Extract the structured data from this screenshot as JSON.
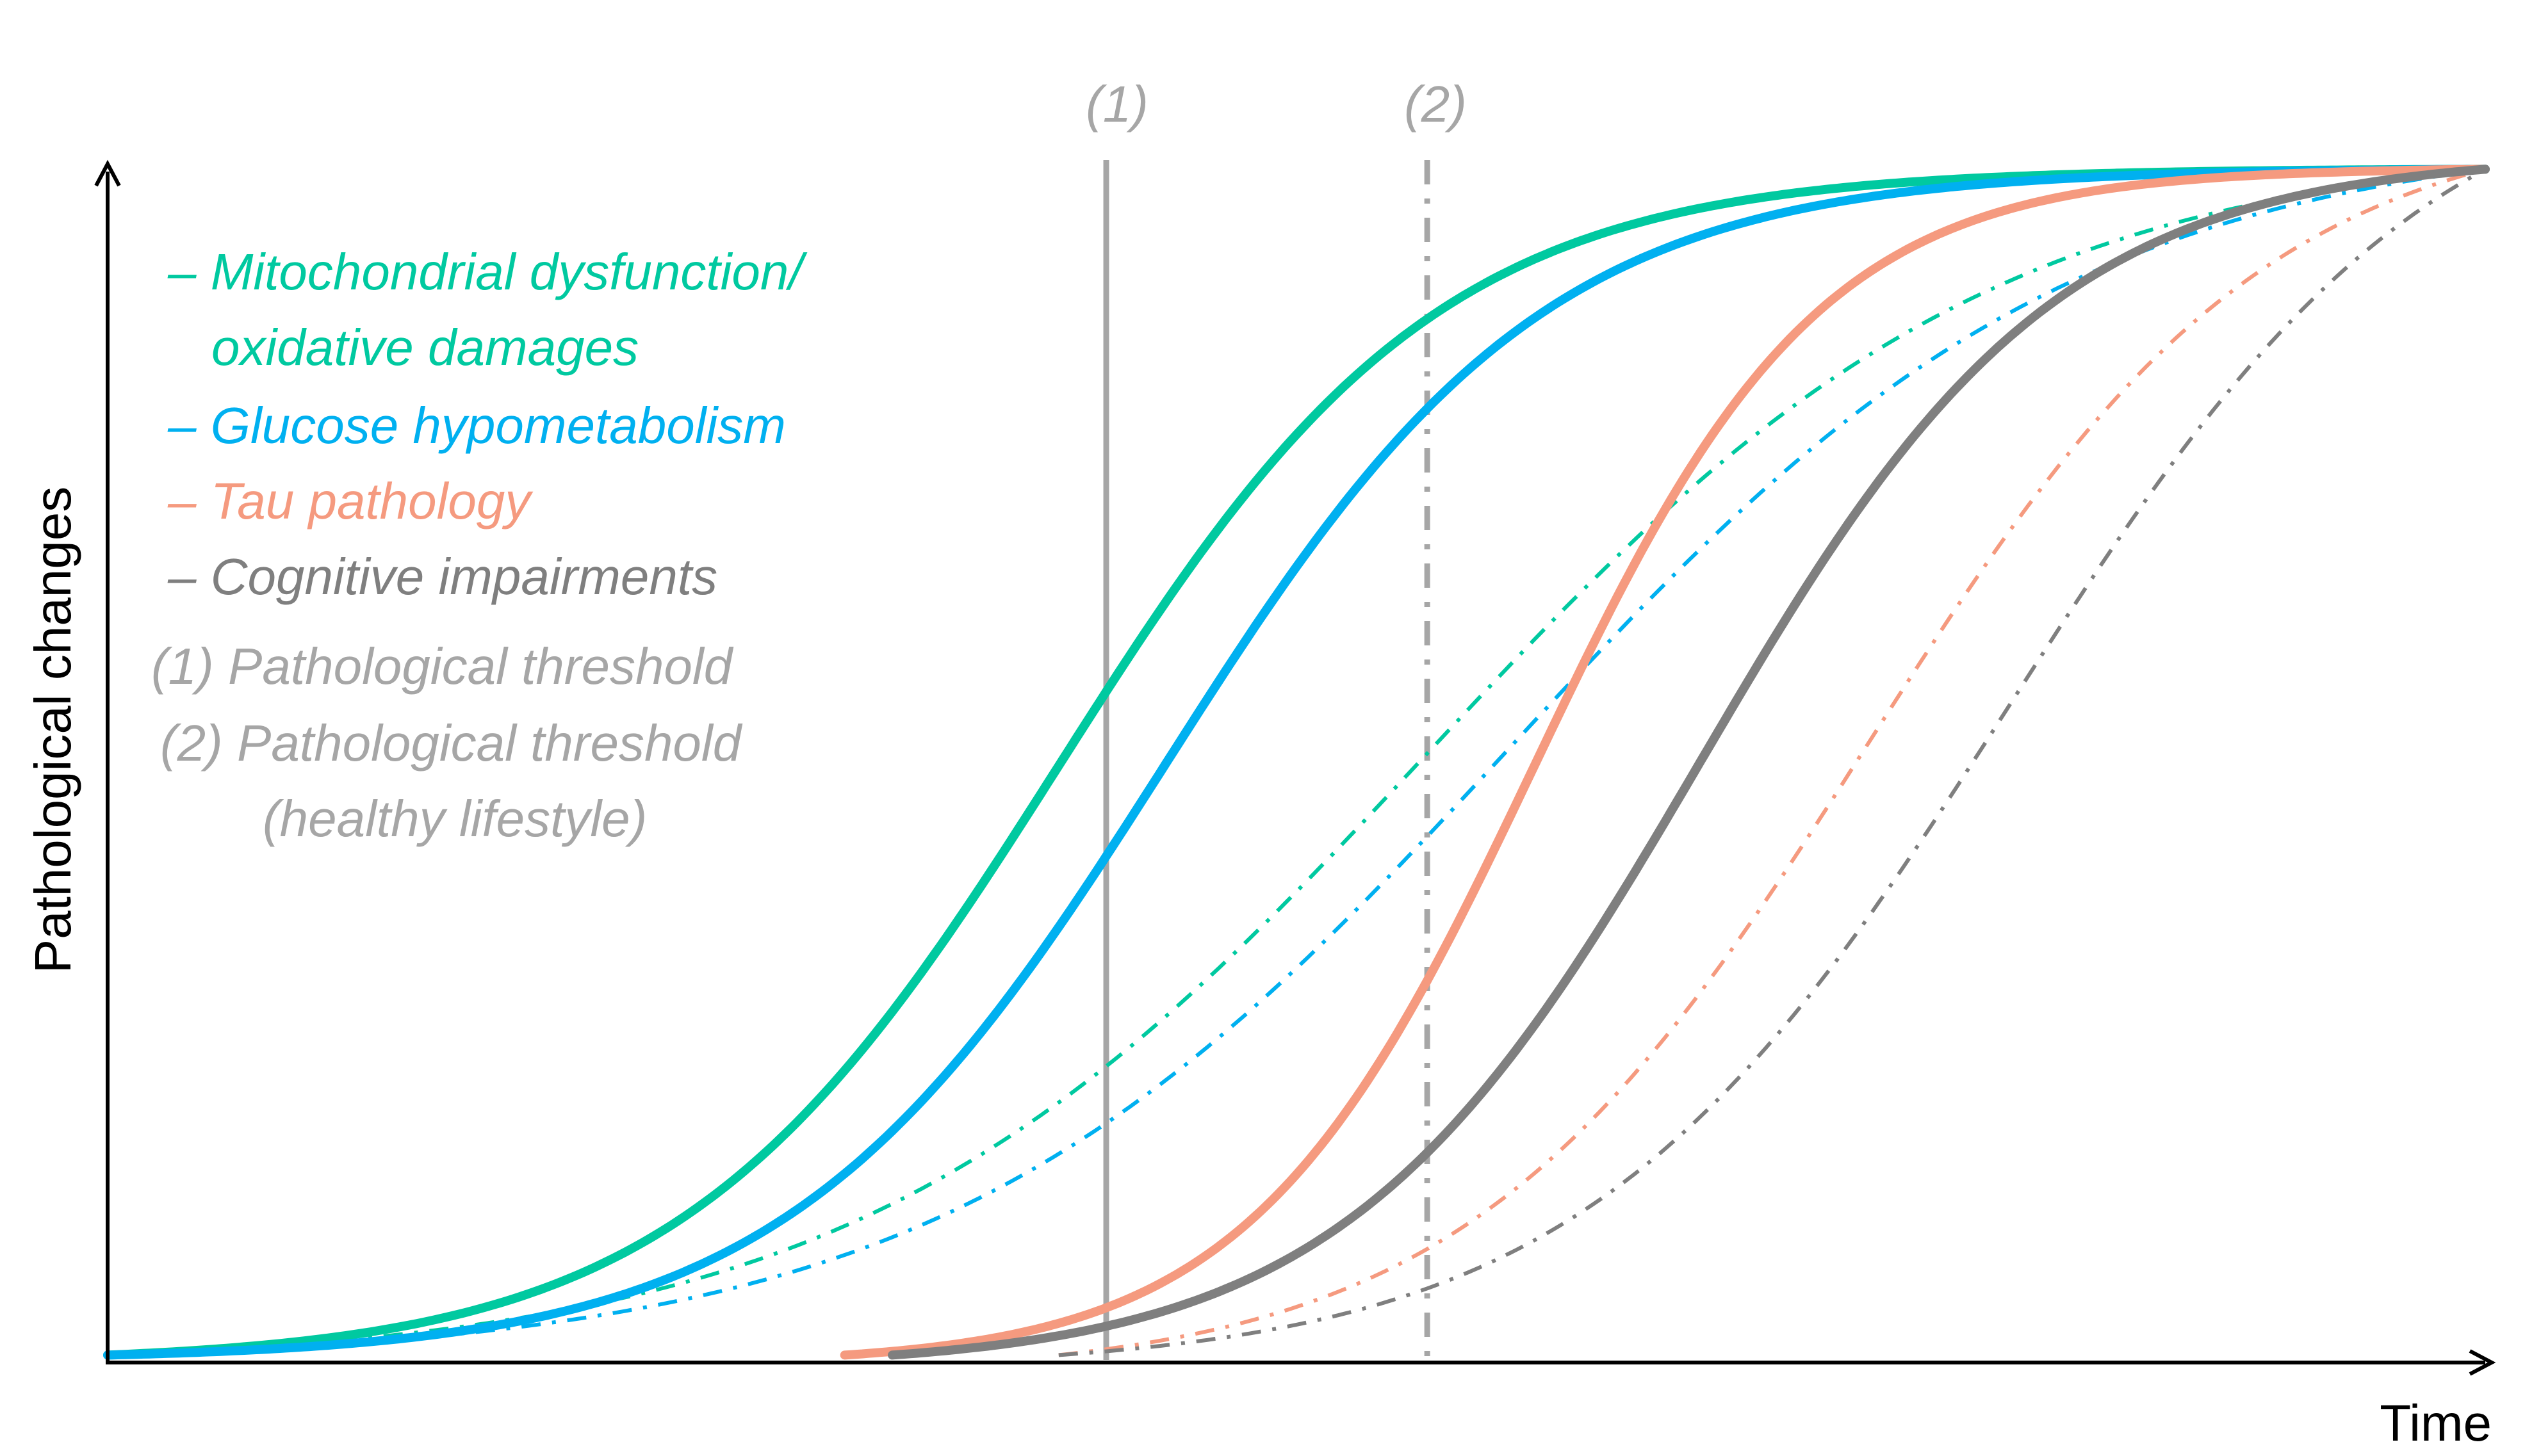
{
  "chart_data": {
    "type": "line",
    "title": "",
    "xlabel": "Time",
    "ylabel": "Pathological changes",
    "xlim": [
      0,
      100
    ],
    "ylim": [
      0,
      100
    ],
    "grid": false,
    "legend_position": "top-left",
    "series": [
      {
        "name": "Mitochondrial dysfunction/ oxidative damages",
        "variant": "pathological",
        "line_style": "solid",
        "color": "#00c9a0",
        "midpoint": 40,
        "spread": 8,
        "start_x": 0
      },
      {
        "name": "Glucose hypometabolism",
        "variant": "pathological",
        "line_style": "solid",
        "color": "#00b0f0",
        "midpoint": 44.5,
        "spread": 8,
        "start_x": 0
      },
      {
        "name": "Tau pathology",
        "variant": "pathological",
        "line_style": "solid",
        "color": "#f59a7f",
        "midpoint": 60,
        "spread": 6,
        "start_x": 31
      },
      {
        "name": "Cognitive impairments",
        "variant": "pathological",
        "line_style": "solid",
        "color": "#7f7f7f",
        "midpoint": 67,
        "spread": 7.5,
        "start_x": 33
      },
      {
        "name": "Mitochondrial dysfunction/ oxidative damages",
        "variant": "healthy lifestyle",
        "line_style": "dash-dot",
        "color": "#00c9a0",
        "midpoint": 55.5,
        "spread": 12,
        "start_x": 0
      },
      {
        "name": "Glucose hypometabolism",
        "variant": "healthy lifestyle",
        "line_style": "dash-dot",
        "color": "#00b0f0",
        "midpoint": 59,
        "spread": 12,
        "start_x": 0
      },
      {
        "name": "Tau pathology",
        "variant": "healthy lifestyle",
        "line_style": "dash-dot",
        "color": "#f59a7f",
        "midpoint": 74,
        "spread": 8.5,
        "start_x": 40
      },
      {
        "name": "Cognitive impairments",
        "variant": "healthy lifestyle",
        "line_style": "dash-dot",
        "color": "#7f7f7f",
        "midpoint": 80,
        "spread": 9,
        "start_x": 40
      }
    ],
    "thresholds": [
      {
        "label": "(1)",
        "x": 42,
        "line_style": "solid",
        "color": "#a6a6a6"
      },
      {
        "label": "(2)",
        "x": 55.5,
        "line_style": "dash-dot",
        "color": "#a6a6a6"
      }
    ],
    "legend": [
      {
        "text": "– Mitochondrial dysfunction/",
        "color": "#00c9a0"
      },
      {
        "text": "oxidative damages",
        "color": "#00c9a0"
      },
      {
        "text": "– Glucose hypometabolism",
        "color": "#00b0f0"
      },
      {
        "text": "– Tau pathology",
        "color": "#f59a7f"
      },
      {
        "text": "– Cognitive impairments",
        "color": "#7f7f7f"
      },
      {
        "text": "(1)  Pathological threshold",
        "color": "#a6a6a6"
      },
      {
        "text": "(2) Pathological threshold",
        "color": "#a6a6a6"
      },
      {
        "text": "(healthy lifestyle)",
        "color": "#a6a6a6"
      }
    ],
    "axis_color": "#000000"
  }
}
